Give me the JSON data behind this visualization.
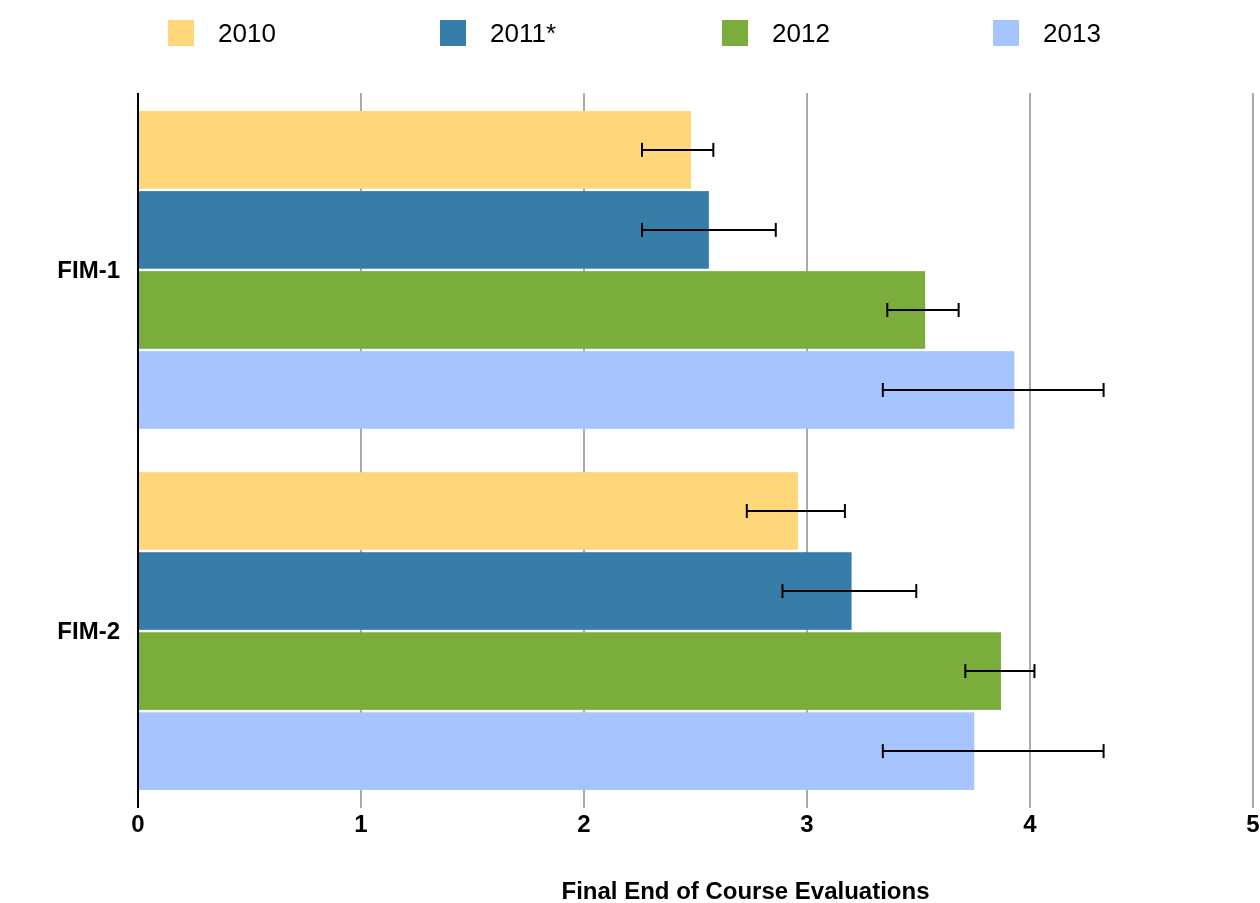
{
  "chart_data": {
    "type": "bar",
    "orientation": "horizontal",
    "xlabel": "Final End of Course Evaluations",
    "categories": [
      "FIM-1",
      "FIM-2"
    ],
    "series": [
      {
        "name": "2010",
        "color": "#fdd77a",
        "values": [
          2.48,
          2.96
        ],
        "errors": [
          [
            2.26,
            2.58
          ],
          [
            2.73,
            3.17
          ]
        ]
      },
      {
        "name": "2011*",
        "color": "#367ea8",
        "values": [
          2.56,
          3.2
        ],
        "errors": [
          [
            2.26,
            2.86
          ],
          [
            2.89,
            3.49
          ]
        ]
      },
      {
        "name": "2012",
        "color": "#7aad3c",
        "values": [
          3.53,
          3.87
        ],
        "errors": [
          [
            3.36,
            3.68
          ],
          [
            3.71,
            4.02
          ]
        ]
      },
      {
        "name": "2013",
        "color": "#a6c4fd",
        "values": [
          3.93,
          3.75
        ],
        "errors": [
          [
            3.34,
            4.33
          ],
          [
            3.34,
            4.33
          ]
        ]
      }
    ],
    "xlim": [
      0,
      5
    ],
    "xticks": [
      0,
      1,
      2,
      3,
      4,
      5
    ],
    "grid": "x",
    "legend": "top"
  }
}
